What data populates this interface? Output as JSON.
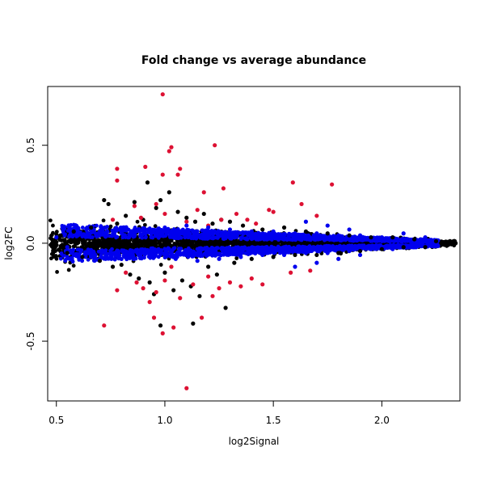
{
  "chart_data": {
    "type": "scatter",
    "title": "Fold change vs average abundance",
    "xlabel": "log2Signal",
    "ylabel": "log2FC",
    "xlim": [
      0.46,
      2.36
    ],
    "ylim": [
      -0.805,
      0.8
    ],
    "x_ticks": [
      0.5,
      1.0,
      1.5,
      2.0
    ],
    "x_tick_labels": [
      "0.5",
      "1.0",
      "1.5",
      "2.0"
    ],
    "y_ticks": [
      -0.5,
      0.0,
      0.5
    ],
    "y_tick_labels": [
      "-0.5",
      "0.0",
      "0.5"
    ],
    "grid": false,
    "series": [
      {
        "color": "#000000",
        "points": [
          [
            0.48,
            0.02
          ],
          [
            0.49,
            -0.03
          ],
          [
            0.52,
            0.04
          ],
          [
            0.55,
            -0.05
          ],
          [
            0.58,
            0.06
          ],
          [
            0.62,
            -0.07
          ],
          [
            0.66,
            0.08
          ],
          [
            0.7,
            -0.09
          ],
          [
            0.72,
            0.22
          ],
          [
            0.74,
            0.2
          ],
          [
            0.76,
            -0.12
          ],
          [
            0.78,
            0.1
          ],
          [
            0.8,
            -0.11
          ],
          [
            0.82,
            0.14
          ],
          [
            0.84,
            -0.16
          ],
          [
            0.86,
            0.21
          ],
          [
            0.88,
            -0.18
          ],
          [
            0.9,
            0.12
          ],
          [
            0.92,
            0.31
          ],
          [
            0.93,
            -0.2
          ],
          [
            0.95,
            -0.26
          ],
          [
            0.96,
            0.18
          ],
          [
            0.98,
            0.22
          ],
          [
            1.0,
            -0.15
          ],
          [
            1.02,
            0.26
          ],
          [
            1.04,
            -0.24
          ],
          [
            1.06,
            0.16
          ],
          [
            1.08,
            -0.19
          ],
          [
            1.1,
            0.13
          ],
          [
            1.12,
            -0.22
          ],
          [
            1.14,
            0.11
          ],
          [
            1.16,
            -0.27
          ],
          [
            1.18,
            0.15
          ],
          [
            1.2,
            -0.12
          ],
          [
            1.22,
            0.1
          ],
          [
            1.24,
            -0.16
          ],
          [
            1.26,
            0.12
          ],
          [
            1.28,
            -0.33
          ],
          [
            1.3,
            0.11
          ],
          [
            1.32,
            -0.1
          ],
          [
            1.36,
            0.09
          ],
          [
            1.4,
            -0.08
          ],
          [
            1.45,
            0.07
          ],
          [
            1.5,
            -0.07
          ],
          [
            1.55,
            0.08
          ],
          [
            1.6,
            -0.06
          ],
          [
            1.65,
            0.06
          ],
          [
            1.7,
            -0.06
          ],
          [
            1.75,
            0.05
          ],
          [
            1.8,
            -0.05
          ],
          [
            1.85,
            0.04
          ],
          [
            1.9,
            -0.04
          ],
          [
            1.95,
            0.03
          ],
          [
            2.0,
            -0.03
          ],
          [
            2.05,
            0.03
          ],
          [
            2.1,
            -0.02
          ],
          [
            2.15,
            0.02
          ],
          [
            2.2,
            -0.02
          ],
          [
            2.25,
            0.01
          ],
          [
            2.3,
            0.0
          ],
          [
            2.33,
            0.01
          ],
          [
            2.34,
            0.0
          ],
          [
            1.13,
            -0.41
          ],
          [
            0.98,
            -0.42
          ]
        ]
      },
      {
        "color": "#dd1133",
        "points": [
          [
            0.99,
            0.76
          ],
          [
            1.23,
            0.5
          ],
          [
            1.03,
            0.49
          ],
          [
            1.02,
            0.47
          ],
          [
            0.91,
            0.39
          ],
          [
            1.07,
            0.38
          ],
          [
            0.78,
            0.38
          ],
          [
            1.06,
            0.35
          ],
          [
            0.99,
            0.35
          ],
          [
            1.59,
            0.31
          ],
          [
            1.77,
            0.3
          ],
          [
            0.78,
            0.32
          ],
          [
            1.18,
            0.26
          ],
          [
            1.27,
            0.28
          ],
          [
            1.63,
            0.2
          ],
          [
            1.48,
            0.17
          ],
          [
            1.5,
            0.16
          ],
          [
            1.38,
            0.12
          ],
          [
            1.7,
            0.14
          ],
          [
            0.96,
            0.2
          ],
          [
            0.86,
            0.19
          ],
          [
            1.0,
            0.15
          ],
          [
            1.15,
            0.17
          ],
          [
            1.33,
            0.15
          ],
          [
            1.42,
            0.1
          ],
          [
            0.89,
            0.13
          ],
          [
            1.26,
            0.12
          ],
          [
            0.76,
            0.12
          ],
          [
            1.2,
            0.09
          ],
          [
            1.1,
            0.11
          ],
          [
            0.72,
            -0.42
          ],
          [
            0.93,
            -0.3
          ],
          [
            0.95,
            -0.38
          ],
          [
            0.99,
            -0.46
          ],
          [
            1.04,
            -0.43
          ],
          [
            1.1,
            -0.74
          ],
          [
            0.78,
            -0.24
          ],
          [
            0.87,
            -0.2
          ],
          [
            0.96,
            -0.25
          ],
          [
            1.07,
            -0.28
          ],
          [
            1.17,
            -0.38
          ],
          [
            1.22,
            -0.27
          ],
          [
            1.3,
            -0.2
          ],
          [
            1.35,
            -0.22
          ],
          [
            1.45,
            -0.21
          ],
          [
            1.58,
            -0.15
          ],
          [
            1.67,
            -0.14
          ],
          [
            1.2,
            -0.17
          ],
          [
            0.82,
            -0.15
          ],
          [
            1.0,
            -0.19
          ],
          [
            1.4,
            -0.18
          ],
          [
            1.13,
            -0.21
          ],
          [
            1.25,
            -0.23
          ],
          [
            1.03,
            -0.12
          ],
          [
            0.9,
            -0.23
          ]
        ]
      },
      {
        "color": "#0000ee",
        "points": [
          [
            0.5,
            0.03
          ],
          [
            0.55,
            -0.02
          ],
          [
            0.6,
            0.04
          ],
          [
            0.65,
            -0.04
          ],
          [
            0.7,
            0.05
          ],
          [
            0.75,
            -0.05
          ],
          [
            0.8,
            0.06
          ],
          [
            0.85,
            -0.06
          ],
          [
            0.9,
            0.07
          ],
          [
            0.95,
            -0.07
          ],
          [
            1.0,
            0.08
          ],
          [
            1.05,
            -0.08
          ],
          [
            1.1,
            0.09
          ],
          [
            1.15,
            -0.09
          ],
          [
            1.2,
            0.08
          ],
          [
            1.25,
            -0.08
          ],
          [
            1.3,
            0.07
          ],
          [
            1.35,
            -0.07
          ],
          [
            1.4,
            0.06
          ],
          [
            1.45,
            -0.06
          ],
          [
            1.5,
            0.06
          ],
          [
            1.55,
            -0.06
          ],
          [
            1.6,
            0.05
          ],
          [
            1.65,
            -0.05
          ],
          [
            1.7,
            0.05
          ],
          [
            1.75,
            -0.05
          ],
          [
            1.8,
            0.04
          ],
          [
            1.85,
            -0.04
          ],
          [
            1.9,
            0.04
          ],
          [
            1.95,
            -0.03
          ],
          [
            2.0,
            0.03
          ],
          [
            2.05,
            -0.03
          ],
          [
            2.1,
            0.02
          ],
          [
            2.15,
            -0.02
          ],
          [
            2.2,
            0.01
          ],
          [
            2.25,
            -0.01
          ],
          [
            1.6,
            -0.12
          ],
          [
            1.7,
            -0.1
          ],
          [
            1.8,
            -0.08
          ],
          [
            1.9,
            -0.06
          ],
          [
            1.85,
            0.07
          ],
          [
            1.75,
            0.09
          ],
          [
            1.65,
            0.11
          ],
          [
            2.1,
            0.05
          ],
          [
            2.2,
            0.03
          ]
        ]
      }
    ],
    "band": {
      "x_range": [
        0.47,
        2.34
      ],
      "half_width_start": 0.095,
      "half_width_end": 0.012
    }
  }
}
